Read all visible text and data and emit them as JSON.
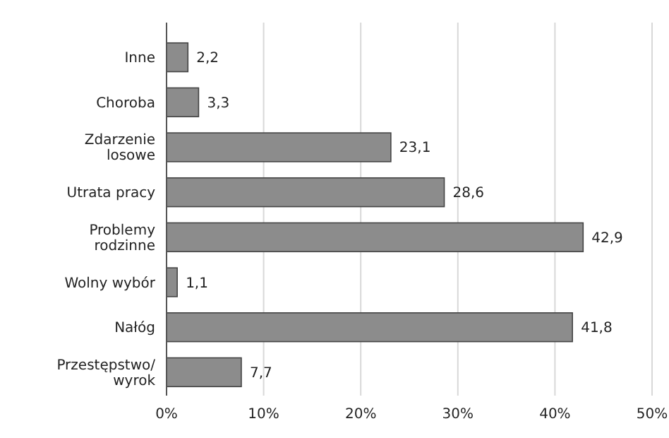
{
  "chart_data": {
    "type": "bar",
    "orientation": "horizontal",
    "categories": [
      "Inne",
      "Choroba",
      "Zdarzenie\nlosowe",
      "Utrata pracy",
      "Problemy\nrodzinne",
      "Wolny wybór",
      "Nałóg",
      "Przestępstwo/\nwyrok"
    ],
    "values": [
      2.2,
      3.3,
      23.1,
      28.6,
      42.9,
      1.1,
      41.8,
      7.7
    ],
    "value_labels": [
      "2,2",
      "3,3",
      "23,1",
      "28,6",
      "42,9",
      "1,1",
      "41,8",
      "7,7"
    ],
    "color": "#8c8c8c",
    "xlim": [
      0,
      50
    ],
    "xticks": [
      {
        "value": 0,
        "label": "0%"
      },
      {
        "value": 10,
        "label": "10%"
      },
      {
        "value": 20,
        "label": "20%"
      },
      {
        "value": 30,
        "label": "30%"
      },
      {
        "value": 40,
        "label": "40%"
      },
      {
        "value": 50,
        "label": "50%"
      }
    ],
    "grid": "x"
  }
}
